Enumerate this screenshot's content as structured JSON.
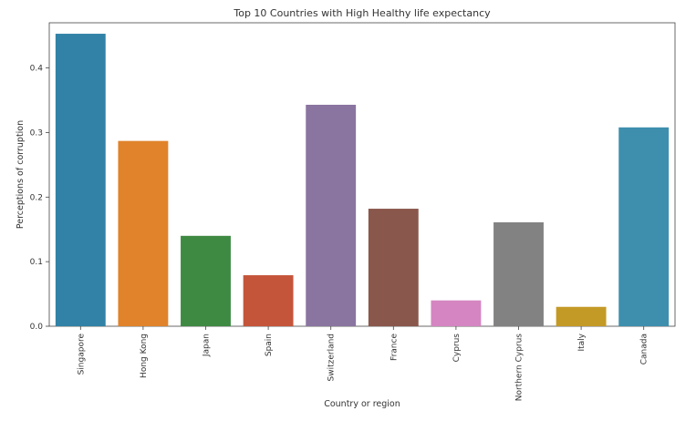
{
  "chart_data": {
    "type": "bar",
    "title": "Top 10 Countries with High Healthy life expectancy",
    "xlabel": "Country or region",
    "ylabel": "Perceptions of corruption",
    "categories": [
      "Singapore",
      "Hong Kong",
      "Japan",
      "Spain",
      "Switzerland",
      "France",
      "Cyprus",
      "Northern Cyprus",
      "Italy",
      "Canada"
    ],
    "values": [
      0.453,
      0.287,
      0.14,
      0.079,
      0.343,
      0.182,
      0.04,
      0.161,
      0.03,
      0.308
    ],
    "colors": [
      "#3182a6",
      "#e0832b",
      "#3e8a42",
      "#c4553a",
      "#8a74a0",
      "#8a574c",
      "#d585c1",
      "#828282",
      "#c49a26",
      "#3d8fad"
    ],
    "ylim": [
      0,
      0.47
    ],
    "yticks": [
      0.0,
      0.1,
      0.2,
      0.3,
      0.4
    ],
    "ytick_labels": [
      "0.0",
      "0.1",
      "0.2",
      "0.3",
      "0.4"
    ],
    "grid": false,
    "legend": "none"
  }
}
